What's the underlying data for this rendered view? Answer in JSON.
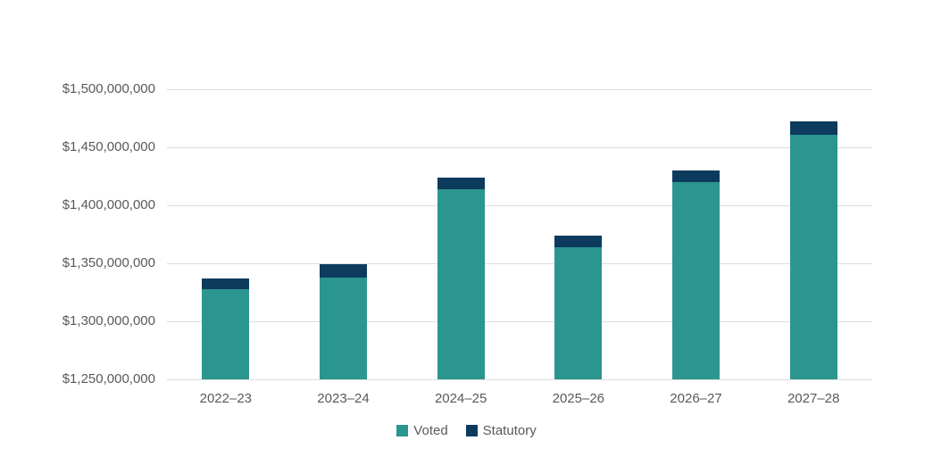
{
  "chart_data": {
    "type": "bar",
    "stacked": true,
    "title": "",
    "xlabel": "",
    "ylabel": "",
    "categories": [
      "2022–23",
      "2023–24",
      "2024–25",
      "2025–26",
      "2026–27",
      "2027–28"
    ],
    "series": [
      {
        "name": "Voted",
        "color": "#2a968f",
        "values": [
          1328000000,
          1338000000,
          1414000000,
          1364000000,
          1420000000,
          1461000000
        ]
      },
      {
        "name": "Statutory",
        "color": "#0d3b5e",
        "values": [
          9000000,
          11000000,
          10000000,
          10000000,
          10000000,
          11000000
        ]
      }
    ],
    "y_min": 1250000000,
    "y_max": 1500000000,
    "y_step": 50000000,
    "y_tick_labels": [
      "$1,250,000,000",
      "$1,300,000,000",
      "$1,350,000,000",
      "$1,400,000,000",
      "$1,450,000,000",
      "$1,500,000,000"
    ],
    "grid": true,
    "gridline_color": "#dcdcdc",
    "axis_text_color": "#595959",
    "legend_position": "bottom"
  }
}
